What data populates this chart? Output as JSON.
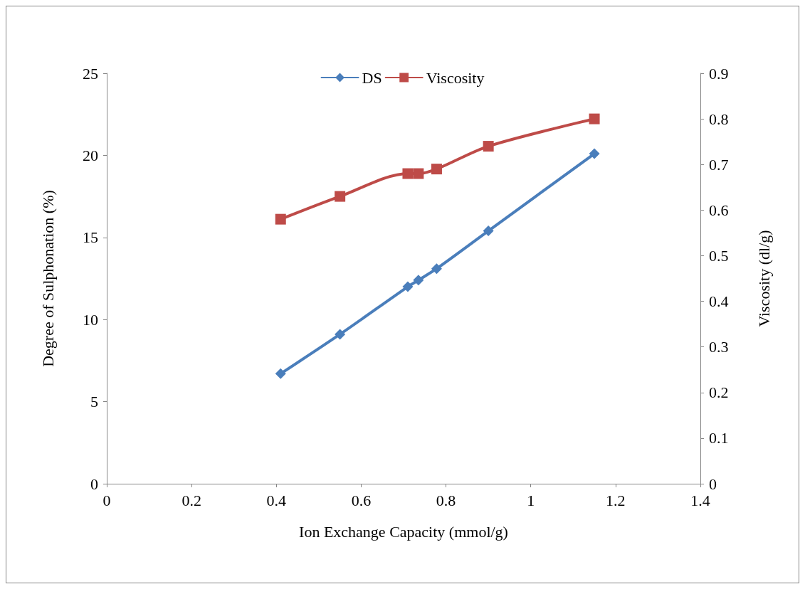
{
  "chart_data": {
    "type": "line",
    "xlabel": "Ion Exchange Capacity (mmol/g)",
    "ylabel": "Degree of Sulphonation (%)",
    "y2label": "Viscosity (dl/g)",
    "x": [
      0.41,
      0.55,
      0.71,
      0.735,
      0.778,
      0.9,
      1.15
    ],
    "series": [
      {
        "name": "DS",
        "color": "#4a7ebb",
        "marker": "diamond",
        "values": [
          6.7,
          9.1,
          12.0,
          12.4,
          13.1,
          15.4,
          20.1
        ]
      },
      {
        "name": "Viscosity",
        "color": "#be4b48",
        "marker": "square",
        "axis": "y2",
        "values": [
          0.58,
          0.63,
          0.68,
          0.68,
          0.69,
          0.74,
          0.8
        ]
      }
    ],
    "xlim": [
      0,
      1.4
    ],
    "xticks": [
      0,
      0.2,
      0.4,
      0.6,
      0.8,
      1,
      1.2,
      1.4
    ],
    "ylim": [
      0,
      25
    ],
    "yticks": [
      0,
      5,
      10,
      15,
      20,
      25
    ],
    "y2lim": [
      0,
      0.9
    ],
    "y2ticks": [
      0,
      0.1,
      0.2,
      0.3,
      0.4,
      0.5,
      0.6,
      0.7,
      0.8,
      0.9
    ],
    "legend": "top",
    "grid": false,
    "line_style": "solid"
  }
}
